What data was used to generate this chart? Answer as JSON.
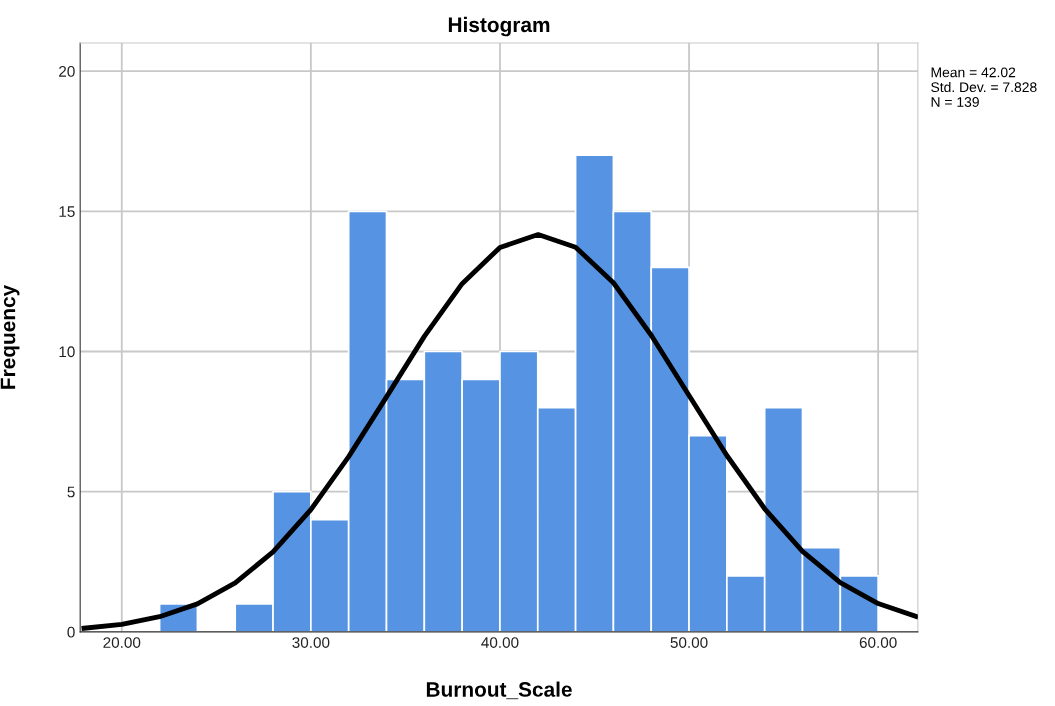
{
  "chart_data": {
    "type": "histogram",
    "title": "Histogram",
    "xlabel": "Burnout_Scale",
    "ylabel": "Frequency",
    "bins": [
      22,
      24,
      26,
      28,
      30,
      32,
      34,
      36,
      38,
      40,
      42,
      44,
      46,
      48,
      50,
      52,
      54,
      56,
      58,
      60
    ],
    "values": [
      1,
      0,
      1,
      5,
      4,
      15,
      9,
      10,
      9,
      10,
      8,
      17,
      15,
      13,
      7,
      2,
      8,
      3,
      2
    ],
    "color": "#5694e3",
    "series": [
      {
        "type": "line",
        "color": "#000000",
        "x": [
          18,
          20,
          22,
          24,
          26,
          28,
          30,
          32,
          34,
          36,
          38,
          40,
          42.02,
          44,
          46,
          48,
          50,
          52,
          54,
          56,
          58,
          60,
          62
        ],
        "values": [
          0.13,
          0.27,
          0.54,
          1.0,
          1.75,
          2.85,
          4.36,
          6.25,
          8.38,
          10.54,
          12.42,
          13.71,
          14.17,
          13.72,
          12.45,
          10.58,
          8.43,
          6.29,
          4.39,
          2.87,
          1.76,
          1.01,
          0.55
        ]
      }
    ],
    "xlim": [
      17.8,
      62.1
    ],
    "ylim": [
      0,
      21
    ],
    "xticks": [
      {
        "value": 20,
        "label": "20.00"
      },
      {
        "value": 30,
        "label": "30.00"
      },
      {
        "value": 40,
        "label": "40.00"
      },
      {
        "value": 50,
        "label": "50.00"
      },
      {
        "value": 60,
        "label": "60.00"
      }
    ],
    "yticks": [
      0,
      5,
      10,
      15,
      20
    ],
    "grid": true,
    "legend": false,
    "annotations": [
      "Mean = 42.02",
      "Std. Dev. = 7.828",
      "N = 139"
    ]
  }
}
